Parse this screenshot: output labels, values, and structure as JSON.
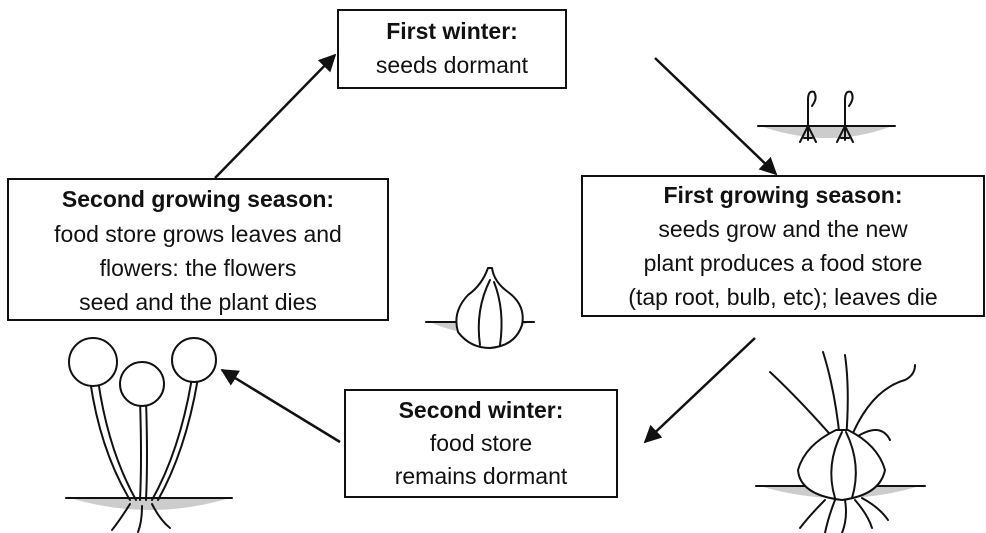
{
  "nodes": [
    {
      "title": "First winter:",
      "lines": [
        "seeds dormant"
      ]
    },
    {
      "title": "First growing season:",
      "lines": [
        "seeds grow and the new",
        "plant produces a food store",
        "(tap root, bulb, etc); leaves die"
      ]
    },
    {
      "title": "Second winter:",
      "lines": [
        "food store",
        "remains dormant"
      ]
    },
    {
      "title": "Second growing season:",
      "lines": [
        "food store grows leaves and",
        "flowers: the flowers",
        "seed and the plant dies"
      ]
    }
  ]
}
